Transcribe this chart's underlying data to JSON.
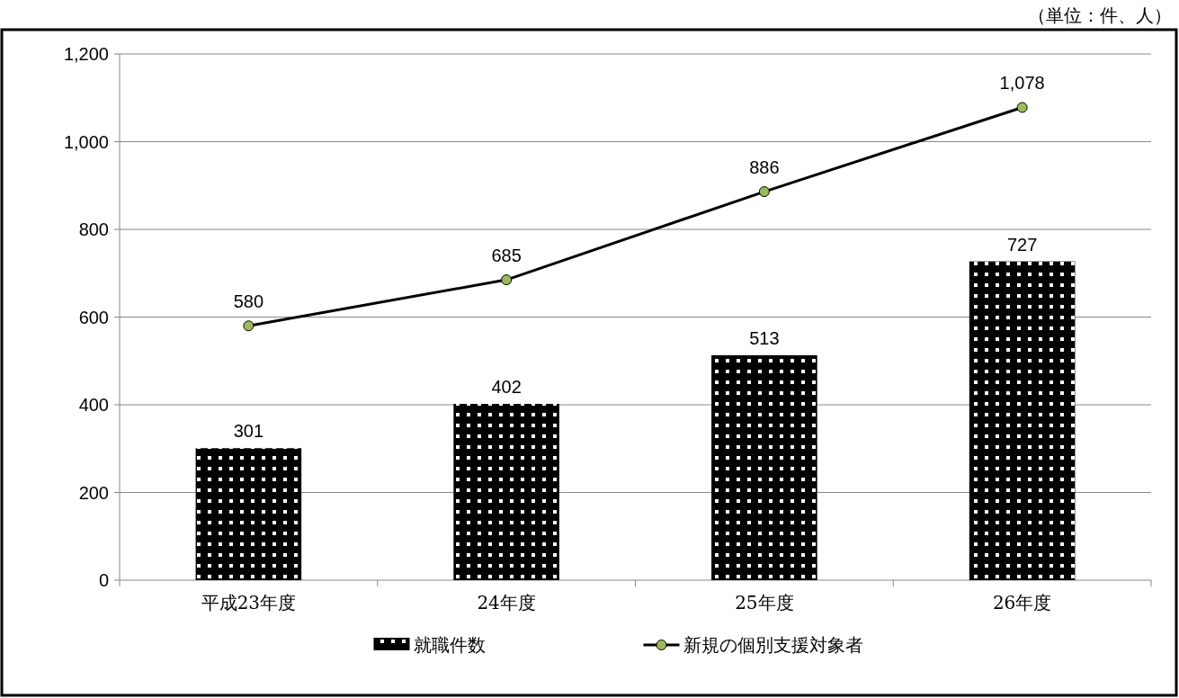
{
  "chart_data": {
    "type": "bar",
    "categories": [
      "平成23年度",
      "24年度",
      "25年度",
      "26年度"
    ],
    "series": [
      {
        "name": "就職件数",
        "color": "#000000",
        "values": [
          301,
          402,
          513,
          727
        ],
        "value_labels": [
          "301",
          "402",
          "513",
          "727"
        ]
      },
      {
        "name": "新規の個別支援対象者",
        "type": "line",
        "color": "#000000",
        "values": [
          580,
          685,
          886,
          1078
        ],
        "value_labels": [
          "580",
          "685",
          "886",
          "1,078"
        ],
        "marker": "circle"
      }
    ],
    "ylim": [
      0,
      1200
    ],
    "yticks": [
      0,
      {
        "value": 200,
        "label": "200"
      },
      {
        "value": 400,
        "label": "400"
      },
      {
        "value": 600,
        "label": "600"
      },
      {
        "value": 800,
        "label": "800"
      },
      {
        "value": 1000,
        "label": "1,000"
      },
      {
        "value": 1200,
        "label": "1,200"
      }
    ],
    "grid": "y",
    "legend": "bottom",
    "annotations": [
      "（単位：件、人）"
    ]
  }
}
